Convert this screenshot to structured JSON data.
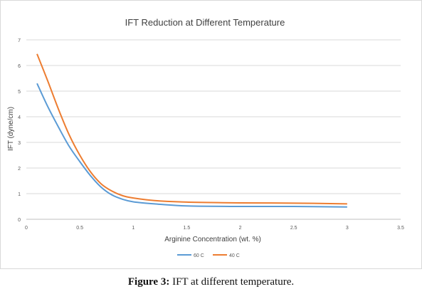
{
  "chart_data": {
    "type": "line",
    "title": "IFT Reduction at Different Temperature",
    "xlabel": "Arginine Concentration (wt. %)",
    "ylabel": "IFT (dyne/cm)",
    "xlim": [
      0,
      3.5
    ],
    "ylim": [
      0,
      7
    ],
    "xticks": [
      {
        "value": 0,
        "label": "0"
      },
      {
        "value": 0.5,
        "label": "0.5"
      },
      {
        "value": 1,
        "label": "1"
      },
      {
        "value": 1.5,
        "label": "1.5"
      },
      {
        "value": 2,
        "label": "2"
      },
      {
        "value": 2.5,
        "label": "2.5"
      },
      {
        "value": 3,
        "label": "3"
      },
      {
        "value": 3.5,
        "label": "3.5"
      }
    ],
    "yticks": [
      {
        "value": 0,
        "label": "0"
      },
      {
        "value": 1,
        "label": "1"
      },
      {
        "value": 2,
        "label": "2"
      },
      {
        "value": 3,
        "label": "3"
      },
      {
        "value": 4,
        "label": "4"
      },
      {
        "value": 5,
        "label": "5"
      },
      {
        "value": 6,
        "label": "6"
      },
      {
        "value": 7,
        "label": "7"
      }
    ],
    "grid": "horizontal",
    "legend_position": "bottom",
    "series": [
      {
        "name": "60 C",
        "color": "#5b9bd5",
        "x": [
          0.1,
          0.2,
          0.3,
          0.4,
          0.5,
          0.6,
          0.7,
          0.8,
          0.9,
          1.0,
          1.2,
          1.5,
          2.0,
          2.5,
          3.0
        ],
        "y": [
          5.3,
          4.4,
          3.6,
          2.85,
          2.25,
          1.7,
          1.25,
          0.95,
          0.78,
          0.68,
          0.6,
          0.52,
          0.5,
          0.5,
          0.48
        ]
      },
      {
        "name": "40 C",
        "color": "#ed7d31",
        "x": [
          0.1,
          0.2,
          0.3,
          0.4,
          0.5,
          0.6,
          0.7,
          0.8,
          0.9,
          1.0,
          1.2,
          1.5,
          2.0,
          2.5,
          3.0
        ],
        "y": [
          6.45,
          5.4,
          4.3,
          3.3,
          2.5,
          1.85,
          1.38,
          1.1,
          0.92,
          0.83,
          0.73,
          0.67,
          0.64,
          0.63,
          0.6
        ]
      }
    ]
  },
  "caption": {
    "label": "Figure 3:",
    "text": " IFT at different temperature."
  }
}
